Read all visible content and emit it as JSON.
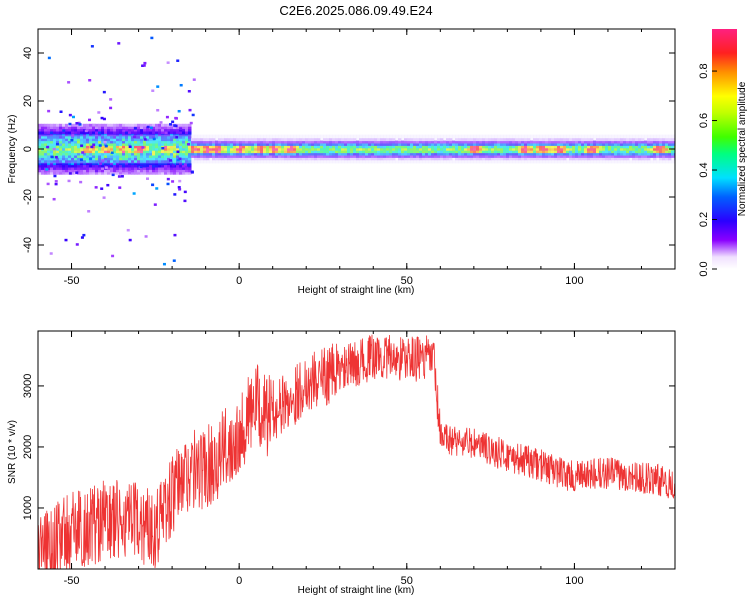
{
  "title": "C2E6.2025.086.09.49.E24",
  "colors": {
    "snr_line": "#ee3333",
    "frame": "#000000"
  },
  "chart_data": [
    {
      "type": "heatmap",
      "xlabel": "Height of straight line (km)",
      "ylabel": "Frequency (Hz)",
      "xlim": [
        -60,
        130
      ],
      "ylim": [
        -50,
        50
      ],
      "xticks": [
        -50,
        0,
        50,
        100
      ],
      "yticks": [
        -40,
        -20,
        0,
        20,
        40
      ],
      "colorbar": {
        "label": "Normalized spectral amplitude",
        "range": [
          0,
          0.97
        ],
        "ticks": [
          0.0,
          0.2,
          0.4,
          0.6,
          0.8
        ]
      },
      "band": {
        "center_hz": 0,
        "strong_peaks_x": [
          -45,
          -40,
          -35,
          -30,
          -22,
          -14,
          -10,
          -7,
          0,
          6,
          10,
          15,
          70,
          85,
          90,
          95,
          105,
          125
        ]
      }
    },
    {
      "type": "line",
      "xlabel": "Height of straight line (km)",
      "ylabel": "SNR (10 * v/v)",
      "xlim": [
        -60,
        130
      ],
      "ylim": [
        0,
        3900
      ],
      "xticks": [
        -50,
        0,
        50,
        100
      ],
      "yticks": [
        1000,
        2000,
        3000
      ],
      "trend": {
        "x": [
          -60,
          -50,
          -40,
          -30,
          -25,
          -20,
          -15,
          -10,
          -5,
          0,
          5,
          8,
          10,
          15,
          20,
          30,
          40,
          50,
          58,
          60,
          65,
          70,
          80,
          90,
          100,
          110,
          120,
          130
        ],
        "y": [
          300,
          600,
          800,
          750,
          700,
          1200,
          1600,
          1650,
          1900,
          2250,
          2700,
          2500,
          2600,
          2750,
          3050,
          3250,
          3480,
          3450,
          3450,
          2150,
          2100,
          2050,
          1850,
          1700,
          1500,
          1580,
          1500,
          1400
        ]
      },
      "noise_amplitude": 380
    }
  ]
}
